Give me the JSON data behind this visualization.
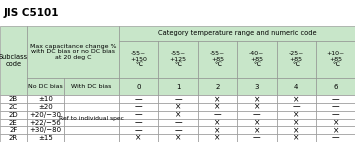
{
  "title": "JIS C5101",
  "header_bg": "#c8e6c9",
  "row_bg": "#ffffff",
  "col_header_top": "Category temperature range and numeric code",
  "col_headers_temp": [
    "-55~\n+150\n℃",
    "-55~\n+125\n℃",
    "-55~\n+85\n℃",
    "-40~\n+85\n℃",
    "-25~\n+85\n℃",
    "+10~\n+85\n℃"
  ],
  "col_headers_num": [
    "0",
    "1",
    "2",
    "3",
    "4",
    "6"
  ],
  "subclass_codes": [
    "2B",
    "2C",
    "2D",
    "2E",
    "2F",
    "2R"
  ],
  "no_dc_bias": [
    "±10",
    "±20",
    "+20/−30",
    "+22/−56",
    "+30/−80",
    "±15"
  ],
  "with_dc_bias": "Ref to individual spec",
  "data": [
    [
      "—",
      "—",
      "×",
      "×",
      "×",
      "—"
    ],
    [
      "—",
      "×",
      "×",
      "×",
      "—",
      "—"
    ],
    [
      "—",
      "×",
      "—",
      "—",
      "×",
      "—"
    ],
    [
      "—",
      "—",
      "×",
      "×",
      "×",
      "×"
    ],
    [
      "—",
      "—",
      "×",
      "×",
      "×",
      "×"
    ],
    [
      "×",
      "×",
      "×",
      "—",
      "×",
      "—"
    ]
  ],
  "title_fontsize": 7.5,
  "header_fontsize": 5.0,
  "cell_fontsize": 5.0,
  "data_fontsize": 5.5,
  "figsize": [
    3.55,
    1.42
  ],
  "dpi": 100
}
